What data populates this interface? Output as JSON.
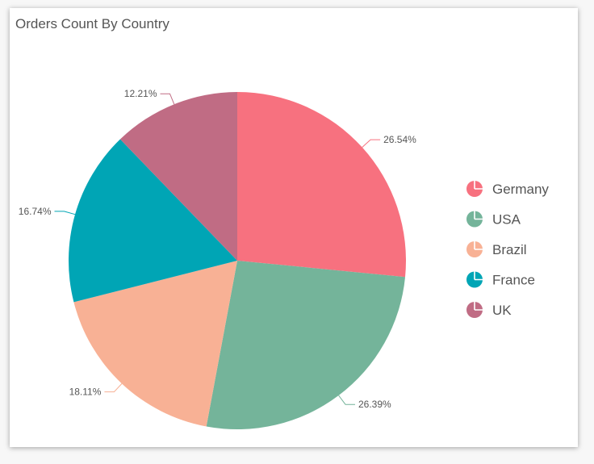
{
  "chart_data": {
    "type": "pie",
    "title": "Orders Count By Country",
    "categories": [
      "Germany",
      "USA",
      "Brazil",
      "France",
      "UK"
    ],
    "values": [
      26.54,
      26.39,
      18.11,
      16.74,
      12.21
    ],
    "labels": [
      "26.54%",
      "26.39%",
      "18.11%",
      "16.74%",
      "12.21%"
    ],
    "colors": [
      "#f7717f",
      "#74b49a",
      "#f8b195",
      "#00a5b5",
      "#c06c84"
    ],
    "legend_position": "right"
  }
}
